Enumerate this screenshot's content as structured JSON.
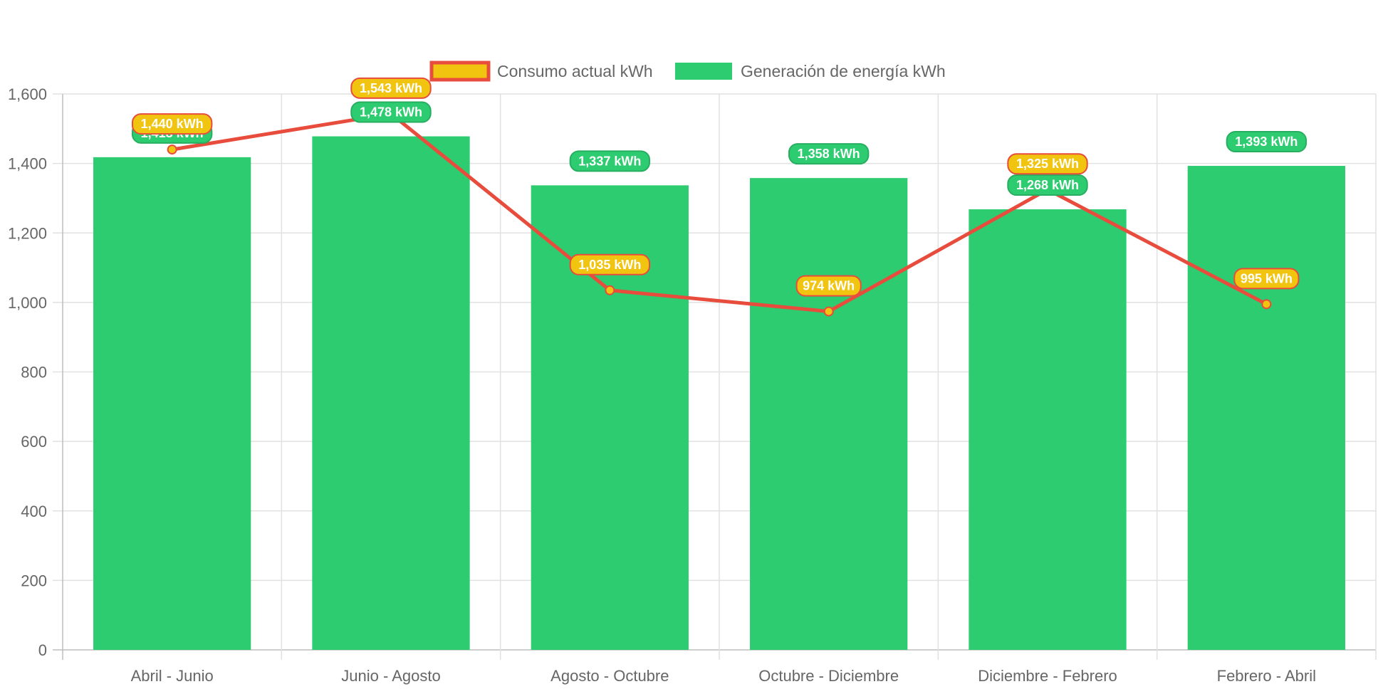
{
  "chart_data": {
    "type": "bar",
    "categories": [
      "Abril - Junio",
      "Junio - Agosto",
      "Agosto - Octubre",
      "Octubre - Diciembre",
      "Diciembre - Febrero",
      "Febrero - Abril"
    ],
    "series": [
      {
        "name": "Consumo actual kWh",
        "type": "line",
        "values": [
          1440,
          1543,
          1035,
          974,
          1325,
          995
        ],
        "labels": [
          "1,440 kWh",
          "1,543 kWh",
          "1,035 kWh",
          "974 kWh",
          "1,325 kWh",
          "995 kWh"
        ],
        "line_color": "#e74c3c",
        "point_color": "#f1c40f"
      },
      {
        "name": "Generación de energía kWh",
        "type": "bar",
        "values": [
          1418,
          1478,
          1337,
          1358,
          1268,
          1393
        ],
        "labels": [
          "1,418 kWh",
          "1,478 kWh",
          "1,337 kWh",
          "1,358 kWh",
          "1,268 kWh",
          "1,393 kWh"
        ],
        "color": "#2ecc71"
      }
    ],
    "y_ticks": [
      "0",
      "200",
      "400",
      "600",
      "800",
      "1,000",
      "1,200",
      "1,400",
      "1,600"
    ],
    "ylim": [
      0,
      1600
    ],
    "grid": true,
    "legend_position": "top"
  }
}
